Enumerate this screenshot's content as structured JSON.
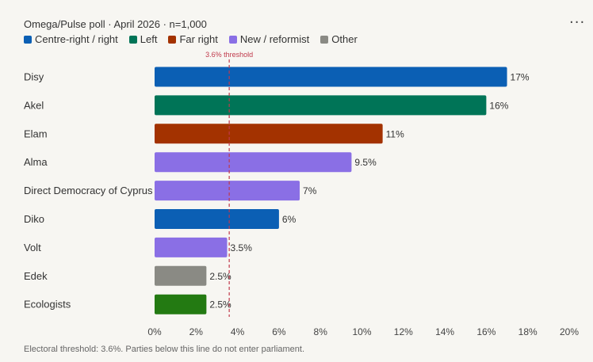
{
  "subtitle": "Omega/Pulse poll · April 2026 · n=1,000",
  "menu_icon": "more-horizontal-icon",
  "menu_glyph": "···",
  "legend": [
    {
      "label": "Centre-right / right",
      "color": "#0b5fb4"
    },
    {
      "label": "Left",
      "color": "#007457"
    },
    {
      "label": "Far right",
      "color": "#a33200"
    },
    {
      "label": "New / reformist",
      "color": "#8a6fe5"
    },
    {
      "label": "Other",
      "color": "#8a8a84"
    }
  ],
  "footnote": "Electoral threshold: 3.6%. Parties below this line do not enter parliament.",
  "chart_data": {
    "type": "bar",
    "orientation": "horizontal",
    "categories": [
      "Disy",
      "Akel",
      "Elam",
      "Alma",
      "Direct Democracy of Cyprus",
      "Diko",
      "Volt",
      "Edek",
      "Ecologists"
    ],
    "values": [
      17,
      16,
      11,
      9.5,
      7,
      6,
      3.5,
      2.5,
      2.5
    ],
    "value_labels": [
      "17%",
      "16%",
      "11%",
      "9.5%",
      "7%",
      "6%",
      "3.5%",
      "2.5%",
      "2.5%"
    ],
    "colors": [
      "#0b5fb4",
      "#007457",
      "#a33200",
      "#8a6fe5",
      "#8a6fe5",
      "#0b5fb4",
      "#8a6fe5",
      "#8a8a84",
      "#237a12"
    ],
    "xlim": [
      0,
      20
    ],
    "xticks": [
      0,
      2,
      4,
      6,
      8,
      10,
      12,
      14,
      16,
      18,
      20
    ],
    "xtick_labels": [
      "0%",
      "2%",
      "4%",
      "6%",
      "8%",
      "10%",
      "12%",
      "14%",
      "16%",
      "18%",
      "20%"
    ],
    "threshold": {
      "value": 3.6,
      "label": "3.6% threshold",
      "color": "#c0394b"
    },
    "grid": false,
    "legend_position": "top-left"
  }
}
